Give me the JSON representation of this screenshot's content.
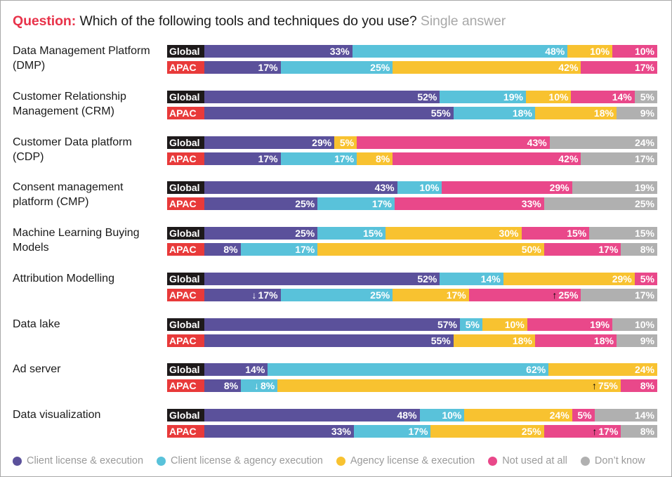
{
  "header": {
    "question_label": "Question:",
    "question_text": "Which of the following tools and techniques do you use?",
    "answer_type": "Single answer"
  },
  "colors": {
    "client_license_execution": "#5b519b",
    "client_license_agency_execution": "#59c2da",
    "agency_license_execution": "#f8c230",
    "not_used": "#e9488a",
    "dont_know": "#b0b0b0",
    "global_tag": "#1e1a1b",
    "apac_tag": "#e83a3a",
    "question_accent": "#e8334a"
  },
  "chart_data": {
    "type": "bar",
    "orientation": "horizontal-stacked-100",
    "title": "Question: Which of the following tools and techniques do you use? Single answer",
    "xlabel": "",
    "ylabel": "",
    "xlim": [
      0,
      100
    ],
    "grid": false,
    "legend_position": "bottom",
    "series_names": [
      "Client license & execution",
      "Client license & agency execution",
      "Agency license & execution",
      "Not used at all",
      "Don’t know"
    ],
    "series_keys": [
      "client_license_execution",
      "client_license_agency_execution",
      "agency_license_execution",
      "not_used",
      "dont_know"
    ],
    "region_labels": [
      "Global",
      "APAC"
    ],
    "categories": [
      {
        "name": "Data Management Platform (DMP)",
        "global": {
          "values": [
            33,
            48,
            10,
            10,
            0
          ],
          "markers": [
            null,
            null,
            null,
            null,
            null
          ]
        },
        "apac": {
          "values": [
            17,
            25,
            42,
            17,
            0
          ],
          "markers": [
            null,
            null,
            null,
            null,
            null
          ]
        }
      },
      {
        "name": "Customer Relationship Management (CRM)",
        "global": {
          "values": [
            52,
            19,
            10,
            14,
            5
          ],
          "markers": [
            null,
            null,
            null,
            null,
            null
          ]
        },
        "apac": {
          "values": [
            55,
            18,
            18,
            0,
            9
          ],
          "markers": [
            null,
            null,
            null,
            null,
            null
          ]
        }
      },
      {
        "name": "Customer Data platform (CDP)",
        "global": {
          "values": [
            29,
            0,
            5,
            43,
            24
          ],
          "markers": [
            null,
            null,
            null,
            null,
            null
          ]
        },
        "apac": {
          "values": [
            17,
            17,
            8,
            42,
            17
          ],
          "markers": [
            null,
            null,
            null,
            null,
            null
          ]
        }
      },
      {
        "name": "Consent management platform (CMP)",
        "global": {
          "values": [
            43,
            10,
            0,
            29,
            19
          ],
          "markers": [
            null,
            null,
            null,
            null,
            null
          ]
        },
        "apac": {
          "values": [
            25,
            17,
            0,
            33,
            25
          ],
          "markers": [
            null,
            null,
            null,
            null,
            null
          ]
        }
      },
      {
        "name": "Machine Learning Buying Models",
        "global": {
          "values": [
            25,
            15,
            30,
            15,
            15
          ],
          "markers": [
            null,
            null,
            null,
            null,
            null
          ]
        },
        "apac": {
          "values": [
            8,
            17,
            50,
            17,
            8
          ],
          "markers": [
            null,
            null,
            null,
            null,
            null
          ]
        }
      },
      {
        "name": "Attribution Modelling",
        "global": {
          "values": [
            52,
            14,
            29,
            5,
            0
          ],
          "markers": [
            null,
            null,
            null,
            null,
            null
          ]
        },
        "apac": {
          "values": [
            17,
            25,
            17,
            25,
            17
          ],
          "markers": [
            "down",
            null,
            null,
            "up",
            null
          ]
        }
      },
      {
        "name": "Data lake",
        "global": {
          "values": [
            57,
            5,
            10,
            19,
            10
          ],
          "markers": [
            null,
            null,
            null,
            null,
            null
          ]
        },
        "apac": {
          "values": [
            55,
            0,
            18,
            18,
            9
          ],
          "markers": [
            null,
            null,
            null,
            null,
            null
          ]
        }
      },
      {
        "name": "Ad server",
        "global": {
          "values": [
            14,
            62,
            24,
            0,
            0
          ],
          "markers": [
            null,
            null,
            null,
            null,
            null
          ]
        },
        "apac": {
          "values": [
            8,
            8,
            75,
            8,
            0
          ],
          "markers": [
            null,
            "down",
            "up",
            null,
            null
          ]
        }
      },
      {
        "name": "Data visualization",
        "global": {
          "values": [
            48,
            10,
            24,
            5,
            14
          ],
          "markers": [
            null,
            null,
            null,
            null,
            null
          ]
        },
        "apac": {
          "values": [
            33,
            17,
            25,
            17,
            8
          ],
          "markers": [
            null,
            null,
            null,
            "up",
            null
          ]
        }
      }
    ]
  }
}
